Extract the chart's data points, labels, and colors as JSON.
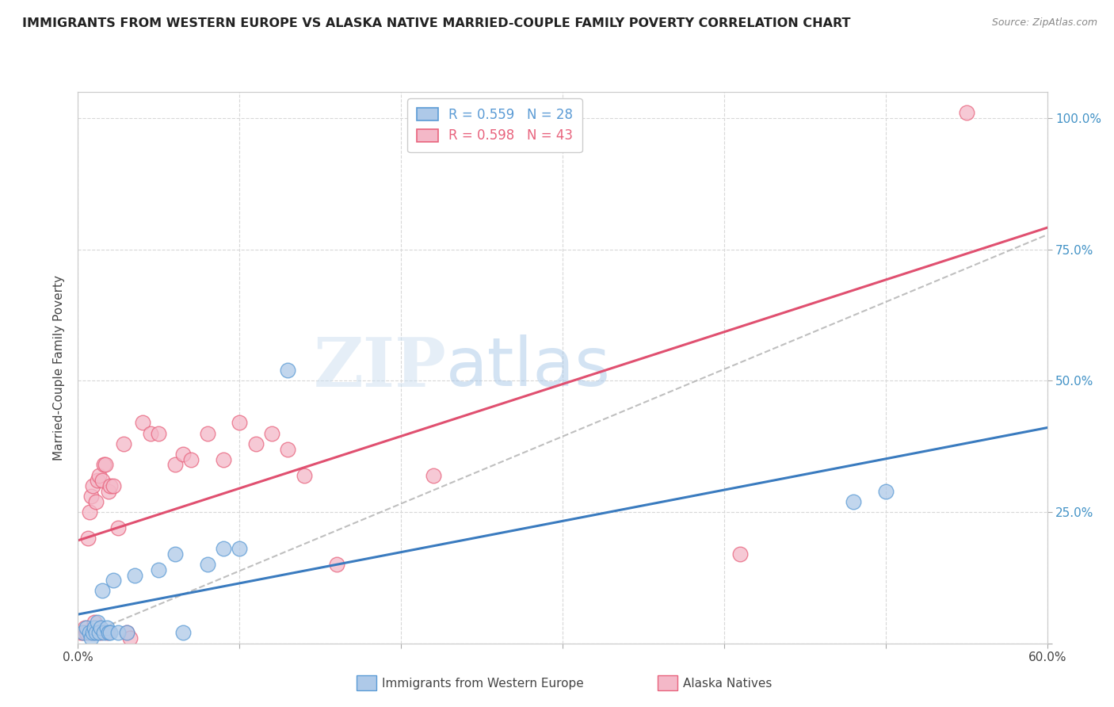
{
  "title": "IMMIGRANTS FROM WESTERN EUROPE VS ALASKA NATIVE MARRIED-COUPLE FAMILY POVERTY CORRELATION CHART",
  "source": "Source: ZipAtlas.com",
  "ylabel": "Married-Couple Family Poverty",
  "ytick_positions": [
    0.0,
    0.25,
    0.5,
    0.75,
    1.0
  ],
  "ytick_labels_right": [
    "",
    "25.0%",
    "50.0%",
    "75.0%",
    "100.0%"
  ],
  "xtick_positions": [
    0.0,
    0.1,
    0.2,
    0.3,
    0.4,
    0.5,
    0.6
  ],
  "xtick_labels": [
    "0.0%",
    "",
    "",
    "",
    "",
    "",
    "60.0%"
  ],
  "xmin": 0.0,
  "xmax": 0.6,
  "ymin": 0.0,
  "ymax": 1.05,
  "legend_label1": "Immigrants from Western Europe",
  "legend_label2": "Alaska Natives",
  "r1": "0.559",
  "n1": "28",
  "r2": "0.598",
  "n2": "43",
  "color_blue_fill": "#aec9e8",
  "color_blue_edge": "#5b9bd5",
  "color_pink_fill": "#f4b8c8",
  "color_pink_edge": "#e8637d",
  "color_blue_line": "#3a7bbf",
  "color_pink_line": "#e05070",
  "color_dash_line": "#b0b0b0",
  "blue_scatter_x": [
    0.003,
    0.005,
    0.007,
    0.008,
    0.009,
    0.01,
    0.011,
    0.012,
    0.013,
    0.014,
    0.015,
    0.016,
    0.018,
    0.019,
    0.02,
    0.022,
    0.025,
    0.03,
    0.035,
    0.05,
    0.06,
    0.065,
    0.08,
    0.09,
    0.1,
    0.13,
    0.48,
    0.5
  ],
  "blue_scatter_y": [
    0.02,
    0.03,
    0.02,
    0.01,
    0.02,
    0.03,
    0.02,
    0.04,
    0.02,
    0.03,
    0.1,
    0.02,
    0.03,
    0.02,
    0.02,
    0.12,
    0.02,
    0.02,
    0.13,
    0.14,
    0.17,
    0.02,
    0.15,
    0.18,
    0.18,
    0.52,
    0.27,
    0.29
  ],
  "pink_scatter_x": [
    0.002,
    0.003,
    0.004,
    0.005,
    0.006,
    0.007,
    0.008,
    0.008,
    0.009,
    0.01,
    0.01,
    0.011,
    0.012,
    0.013,
    0.014,
    0.015,
    0.016,
    0.017,
    0.018,
    0.019,
    0.02,
    0.022,
    0.025,
    0.028,
    0.03,
    0.032,
    0.04,
    0.045,
    0.05,
    0.06,
    0.065,
    0.07,
    0.08,
    0.09,
    0.1,
    0.11,
    0.12,
    0.13,
    0.14,
    0.16,
    0.22,
    0.41,
    0.55
  ],
  "pink_scatter_y": [
    0.02,
    0.02,
    0.03,
    0.02,
    0.2,
    0.25,
    0.28,
    0.02,
    0.3,
    0.02,
    0.04,
    0.27,
    0.31,
    0.32,
    0.02,
    0.31,
    0.34,
    0.34,
    0.02,
    0.29,
    0.3,
    0.3,
    0.22,
    0.38,
    0.02,
    0.01,
    0.42,
    0.4,
    0.4,
    0.34,
    0.36,
    0.35,
    0.4,
    0.35,
    0.42,
    0.38,
    0.4,
    0.37,
    0.32,
    0.15,
    0.32,
    0.17,
    1.01
  ],
  "watermark_zip": "ZIP",
  "watermark_atlas": "atlas",
  "background_color": "#ffffff",
  "grid_color": "#d8d8d8"
}
